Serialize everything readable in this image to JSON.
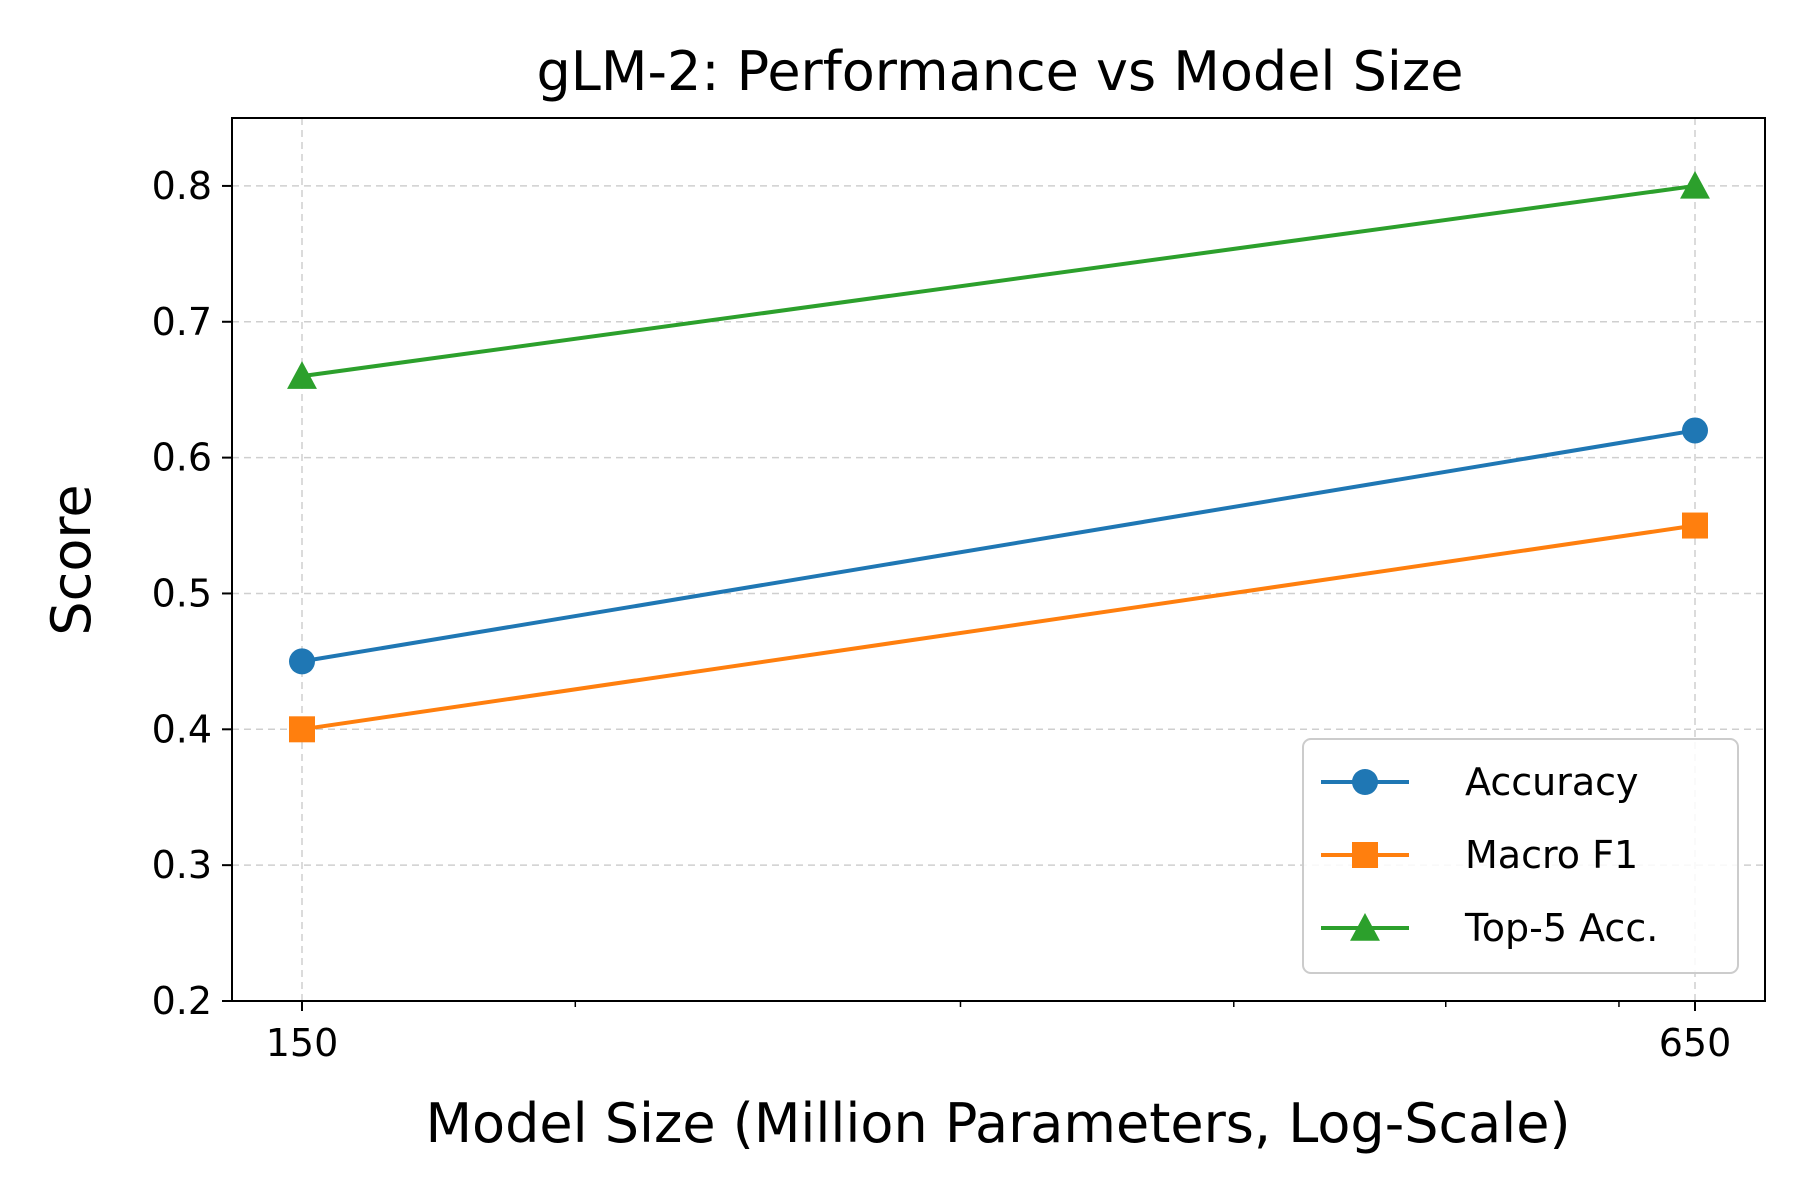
{
  "chart_data": {
    "type": "line",
    "title": "gLM-2: Performance vs Model Size",
    "xlabel": "Model Size (Million Parameters, Log-Scale)",
    "ylabel": "Score",
    "x_scale": "log",
    "x": [
      150,
      650
    ],
    "x_tick_labels": [
      "150",
      "650"
    ],
    "x_minor_ticks": [
      200,
      300,
      400,
      500,
      600
    ],
    "ylim": [
      0.2,
      0.85
    ],
    "y_ticks": [
      0.2,
      0.3,
      0.4,
      0.5,
      0.6,
      0.7,
      0.8
    ],
    "y_tick_labels": [
      "0.2",
      "0.3",
      "0.4",
      "0.5",
      "0.6",
      "0.7",
      "0.8"
    ],
    "grid": true,
    "legend_position": "lower right",
    "series": [
      {
        "name": "Accuracy",
        "values": [
          0.45,
          0.62
        ],
        "color": "#1f77b4",
        "marker": "circle"
      },
      {
        "name": "Macro F1",
        "values": [
          0.4,
          0.55
        ],
        "color": "#ff7f0e",
        "marker": "square"
      },
      {
        "name": "Top-5 Acc.",
        "values": [
          0.66,
          0.8
        ],
        "color": "#2ca02c",
        "marker": "triangle"
      }
    ]
  }
}
